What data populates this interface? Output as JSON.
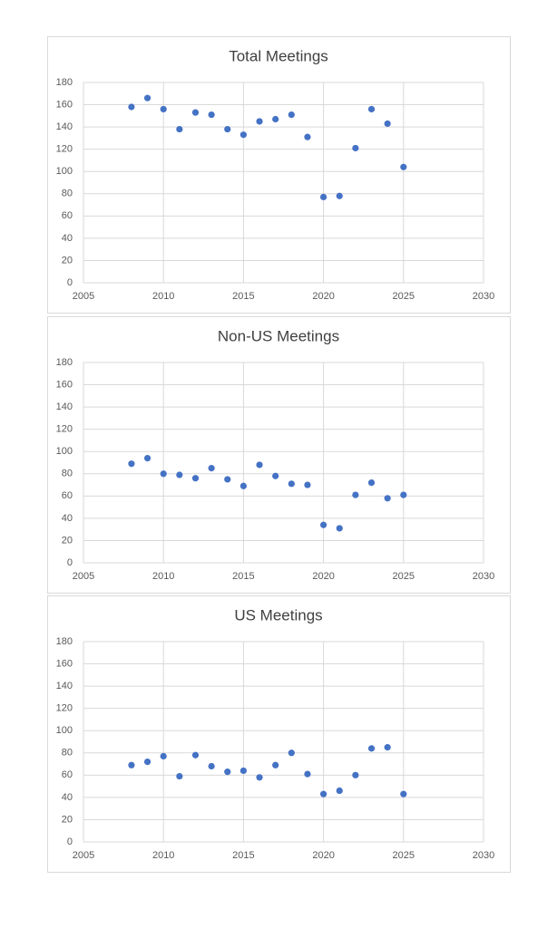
{
  "chart_data": [
    {
      "type": "scatter",
      "title": "Total Meetings",
      "x": [
        2008,
        2009,
        2010,
        2011,
        2012,
        2013,
        2014,
        2015,
        2016,
        2017,
        2018,
        2019,
        2020,
        2021,
        2022,
        2023,
        2024,
        2025
      ],
      "series": [
        {
          "color": "#4472c4",
          "values": [
            158,
            166,
            156,
            138,
            153,
            151,
            138,
            133,
            145,
            147,
            151,
            131,
            77,
            78,
            121,
            156,
            143,
            104
          ]
        }
      ],
      "xlim": [
        2005,
        2030
      ],
      "xticks": [
        2005,
        2010,
        2015,
        2020,
        2025,
        2030
      ],
      "ylim": [
        0,
        180
      ],
      "yticks": [
        0,
        20,
        40,
        60,
        80,
        100,
        120,
        140,
        160,
        180
      ],
      "grid": true
    },
    {
      "type": "scatter",
      "title": "Non-US Meetings",
      "x": [
        2008,
        2009,
        2010,
        2011,
        2012,
        2013,
        2014,
        2015,
        2016,
        2017,
        2018,
        2019,
        2020,
        2021,
        2022,
        2023,
        2024,
        2025
      ],
      "series": [
        {
          "color": "#4472c4",
          "values": [
            89,
            94,
            80,
            79,
            76,
            85,
            75,
            69,
            88,
            78,
            71,
            70,
            34,
            31,
            61,
            72,
            58,
            61
          ]
        }
      ],
      "xlim": [
        2005,
        2030
      ],
      "xticks": [
        2005,
        2010,
        2015,
        2020,
        2025,
        2030
      ],
      "ylim": [
        0,
        180
      ],
      "yticks": [
        0,
        20,
        40,
        60,
        80,
        100,
        120,
        140,
        160,
        180
      ],
      "grid": true
    },
    {
      "type": "scatter",
      "title": "US Meetings",
      "x": [
        2008,
        2009,
        2010,
        2011,
        2012,
        2013,
        2014,
        2015,
        2016,
        2017,
        2018,
        2019,
        2020,
        2021,
        2022,
        2023,
        2024,
        2025
      ],
      "series": [
        {
          "color": "#4472c4",
          "values": [
            69,
            72,
            77,
            59,
            78,
            68,
            63,
            64,
            58,
            69,
            80,
            61,
            43,
            46,
            60,
            84,
            85,
            43
          ]
        }
      ],
      "xlim": [
        2005,
        2030
      ],
      "xticks": [
        2005,
        2010,
        2015,
        2020,
        2025,
        2030
      ],
      "ylim": [
        0,
        180
      ],
      "yticks": [
        0,
        20,
        40,
        60,
        80,
        100,
        120,
        140,
        160,
        180
      ],
      "grid": true
    }
  ]
}
